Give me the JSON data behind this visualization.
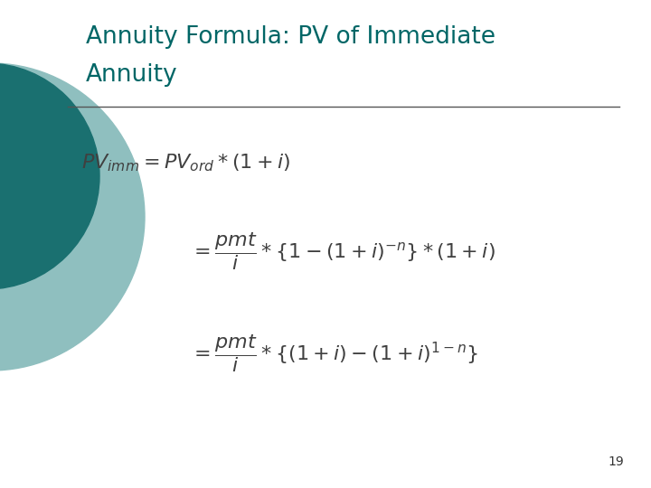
{
  "title_line1": "Annuity Formula: PV of Immediate",
  "title_line2": "Annuity",
  "title_color": "#006666",
  "background_color": "#ffffff",
  "line_color": "#555555",
  "formula_color": "#404040",
  "page_number": "19",
  "circle_color1": "#1a7070",
  "circle_color2": "#8fbfbf",
  "title_fontsize": 19,
  "formula_fontsize": 16,
  "page_fontsize": 10
}
